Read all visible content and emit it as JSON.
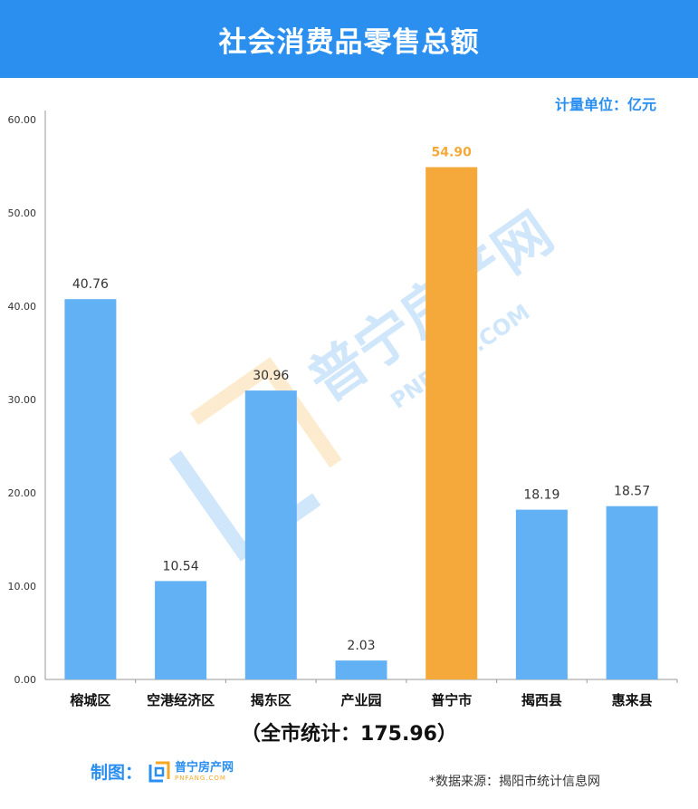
{
  "header": {
    "title": "社会消费品零售总额"
  },
  "unit_label": "计量单位：亿元",
  "total_label": "（全市统计：175.96）",
  "maker": {
    "label": "制图：",
    "logo_cn": "普宁房产网",
    "logo_en": "PNFANG.COM"
  },
  "source": "*数据来源：揭阳市统计信息网",
  "watermark": {
    "cn": "普宁房产网",
    "en": "PNFANG.COM"
  },
  "colors": {
    "header": "#2b8ff0",
    "bar": "#62b1f5",
    "highlight": "#f4a93a",
    "highlight_label": "#f4a93a"
  },
  "chart_data": {
    "type": "bar",
    "title": "社会消费品零售总额",
    "xlabel": "",
    "ylabel": "",
    "ylim": [
      0,
      60
    ],
    "yticks": [
      "0.00",
      "10.00",
      "20.00",
      "30.00",
      "40.00",
      "50.00",
      "60.00"
    ],
    "grid": false,
    "categories": [
      "榕城区",
      "空港经济区",
      "揭东区",
      "产业园",
      "普宁市",
      "揭西县",
      "惠来县"
    ],
    "values": [
      40.76,
      10.54,
      30.96,
      2.03,
      54.9,
      18.19,
      18.57
    ],
    "labels": [
      "40.76",
      "10.54",
      "30.96",
      "2.03",
      "54.90",
      "18.19",
      "18.57"
    ],
    "highlight_index": 4
  }
}
